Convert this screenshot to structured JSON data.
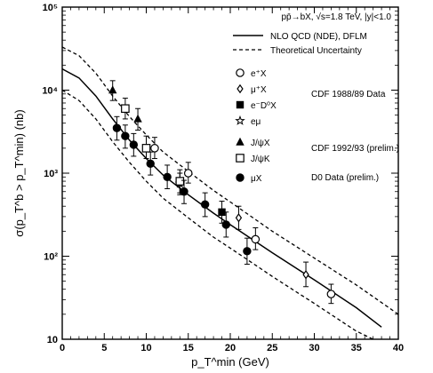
{
  "chart_data": {
    "type": "scatter",
    "y_scale": "log",
    "xlim": [
      0,
      40
    ],
    "ylim": [
      10,
      100000
    ],
    "x_ticks": [
      0,
      5,
      10,
      15,
      20,
      25,
      30,
      35,
      40
    ],
    "y_ticks": [
      {
        "value": 10,
        "label": "10"
      },
      {
        "value": 100,
        "label": "10²"
      },
      {
        "value": 1000,
        "label": "10³"
      },
      {
        "value": 10000,
        "label": "10⁴"
      },
      {
        "value": 100000,
        "label": "10⁵"
      }
    ],
    "xlabel": "p_T^min (GeV)",
    "ylabel": "σ(p_T^b > p_T^min) (nb)",
    "header": "pp̄→bX, √s=1.8 TeV, |y|<1.0",
    "curves": [
      {
        "name": "NLO QCD (NDE), DFLM",
        "style": "solid",
        "points": [
          [
            0,
            18000
          ],
          [
            2,
            14000
          ],
          [
            4,
            8500
          ],
          [
            6,
            4500
          ],
          [
            8,
            2500
          ],
          [
            10,
            1500
          ],
          [
            12,
            950
          ],
          [
            15,
            550
          ],
          [
            18,
            330
          ],
          [
            20,
            240
          ],
          [
            25,
            110
          ],
          [
            30,
            52
          ],
          [
            35,
            24
          ],
          [
            38,
            14
          ]
        ]
      },
      {
        "name": "Theoretical Uncertainty",
        "style": "dashed",
        "points": [
          [
            0,
            33000
          ],
          [
            2,
            26000
          ],
          [
            4,
            16000
          ],
          [
            6,
            8500
          ],
          [
            8,
            4800
          ],
          [
            10,
            2900
          ],
          [
            12,
            1800
          ],
          [
            15,
            1050
          ],
          [
            18,
            620
          ],
          [
            20,
            450
          ],
          [
            25,
            200
          ],
          [
            30,
            95
          ],
          [
            35,
            45
          ],
          [
            40,
            20
          ]
        ]
      },
      {
        "name": "Theoretical Uncertainty (lower)",
        "style": "dashed",
        "points": [
          [
            0,
            10000
          ],
          [
            2,
            7500
          ],
          [
            4,
            4500
          ],
          [
            6,
            2400
          ],
          [
            8,
            1350
          ],
          [
            10,
            800
          ],
          [
            12,
            500
          ],
          [
            15,
            290
          ],
          [
            18,
            170
          ],
          [
            20,
            125
          ],
          [
            25,
            57
          ],
          [
            30,
            27
          ],
          [
            35,
            12.5
          ],
          [
            37,
            10
          ]
        ]
      }
    ],
    "series": [
      {
        "name": "e⁺X",
        "marker": "circle-open",
        "points": [
          {
            "x": 11,
            "y": 2000,
            "lo": 1500,
            "hi": 2700
          },
          {
            "x": 15,
            "y": 1000,
            "lo": 760,
            "hi": 1350
          },
          {
            "x": 23,
            "y": 160,
            "lo": 120,
            "hi": 220
          },
          {
            "x": 32,
            "y": 35,
            "lo": 27,
            "hi": 46
          }
        ]
      },
      {
        "name": "μ⁺X",
        "marker": "diamond-open",
        "points": [
          {
            "x": 21,
            "y": 290,
            "lo": 210,
            "hi": 400
          },
          {
            "x": 29,
            "y": 60,
            "lo": 43,
            "hi": 85
          }
        ]
      },
      {
        "name": "e⁻D⁰X",
        "marker": "square-filled",
        "points": [
          {
            "x": 19,
            "y": 340,
            "lo": 250,
            "hi": 460
          }
        ]
      },
      {
        "name": "eμ",
        "marker": "star-open",
        "points": [
          {
            "x": 14,
            "y": 750,
            "lo": 550,
            "hi": 1000
          }
        ]
      },
      {
        "name": "J/ψX",
        "marker": "triangle-filled",
        "points": [
          {
            "x": 6,
            "y": 10000,
            "lo": 7500,
            "hi": 13000
          },
          {
            "x": 9,
            "y": 4500,
            "lo": 3300,
            "hi": 6000
          }
        ]
      },
      {
        "name": "J/ψK",
        "marker": "square-open",
        "points": [
          {
            "x": 7.5,
            "y": 6000,
            "lo": 4500,
            "hi": 8000
          },
          {
            "x": 10,
            "y": 2000,
            "lo": 1500,
            "hi": 2800
          },
          {
            "x": 14,
            "y": 800,
            "lo": 580,
            "hi": 1100
          }
        ]
      },
      {
        "name": "μX",
        "marker": "circle-filled",
        "points": [
          {
            "x": 6.5,
            "y": 3500,
            "lo": 2500,
            "hi": 4800
          },
          {
            "x": 7.5,
            "y": 2800,
            "lo": 2000,
            "hi": 3800
          },
          {
            "x": 8.5,
            "y": 2200,
            "lo": 1600,
            "hi": 3000
          },
          {
            "x": 10.5,
            "y": 1300,
            "lo": 950,
            "hi": 1800
          },
          {
            "x": 12.5,
            "y": 900,
            "lo": 650,
            "hi": 1250
          },
          {
            "x": 14.5,
            "y": 600,
            "lo": 430,
            "hi": 820
          },
          {
            "x": 17,
            "y": 420,
            "lo": 300,
            "hi": 580
          },
          {
            "x": 19.5,
            "y": 240,
            "lo": 170,
            "hi": 340
          },
          {
            "x": 22,
            "y": 115,
            "lo": 80,
            "hi": 165
          }
        ]
      }
    ],
    "legend_groups": [
      {
        "label": "CDF 1988/89 Data",
        "members": [
          0,
          1,
          2,
          3
        ]
      },
      {
        "label": "CDF 1992/93 (prelim.)",
        "members": [
          4,
          5
        ]
      },
      {
        "label": "D0 Data (prelim.)",
        "members": [
          6
        ]
      }
    ]
  }
}
